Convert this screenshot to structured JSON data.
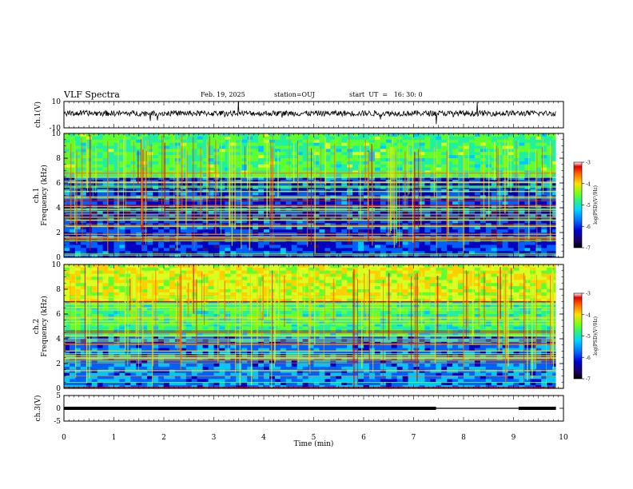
{
  "header": {
    "title": "VLF Spectra",
    "date": "Feb. 19, 2025",
    "station": "station=OUJ",
    "start": "start  UT  =   16: 30: 0"
  },
  "colors": {
    "waveform": "#000000",
    "cmap": [
      "#3a0a7a",
      "#0000c0",
      "#0060ff",
      "#00c8ff",
      "#20f0a0",
      "#60ff30",
      "#d8ff20",
      "#ffd000",
      "#ff7000",
      "#e00000"
    ]
  },
  "chart_data": [
    {
      "type": "line",
      "ylabel": "ch.1(V)",
      "ylim": [
        -10,
        10
      ],
      "yticks": [
        "10",
        "-10"
      ],
      "x_range_min": [
        0,
        10
      ],
      "note_trace": "noisy waveform centered slightly above 0 V with occasional spikes"
    },
    {
      "type": "heatmap",
      "ylabel": "Frequency (kHz)",
      "panel_label": "ch.1",
      "ylim": [
        0,
        10
      ],
      "yticks": [
        "0",
        "2",
        "4",
        "6",
        "8",
        "10"
      ],
      "colorbar": {
        "label": "log(PSD)(V²/Hz)",
        "range": [
          -7,
          -3
        ],
        "ticks": [
          "-3",
          "-4",
          "-5",
          "-6",
          "-7"
        ]
      }
    },
    {
      "type": "heatmap",
      "ylabel": "Frequency (kHz)",
      "panel_label": "ch.2",
      "ylim": [
        0,
        10
      ],
      "yticks": [
        "0",
        "2",
        "4",
        "6",
        "8",
        "10"
      ],
      "colorbar": {
        "label": "log(PSD)(V²/Hz)",
        "range": [
          -7,
          -3
        ],
        "ticks": [
          "-3",
          "-4",
          "-5",
          "-6",
          "-7"
        ]
      }
    },
    {
      "type": "line",
      "ylabel": "ch.3(V)",
      "ylim": [
        -5,
        5
      ],
      "yticks": [
        "5",
        "0",
        "-5"
      ],
      "series": [
        {
          "x": [
            0,
            7.45
          ],
          "y": [
            0,
            0
          ]
        },
        {
          "x": [
            7.45,
            9.1
          ],
          "y": [
            0,
            0
          ]
        },
        {
          "x": [
            9.1,
            9.85
          ],
          "y": [
            0,
            0
          ]
        }
      ]
    }
  ],
  "xaxis": {
    "label": "Time (min)",
    "range": [
      0,
      10
    ],
    "ticks": [
      "0",
      "1",
      "2",
      "3",
      "4",
      "5",
      "6",
      "7",
      "8",
      "9",
      "10"
    ]
  }
}
